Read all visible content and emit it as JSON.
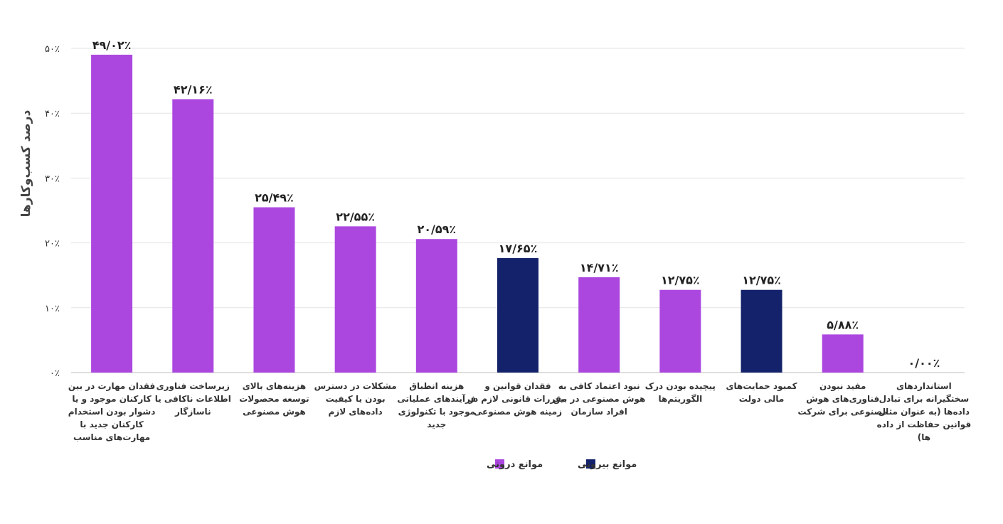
{
  "chart_data": {
    "type": "bar",
    "ylabel": "درصد کسب‌وکارها",
    "xlabel": "",
    "ylim": [
      0,
      50
    ],
    "y_ticks": [
      "۰٪",
      "۱۰٪",
      "۲۰٪",
      "۳۰٪",
      "۴۰٪",
      "۵۰٪"
    ],
    "grid": true,
    "categories": [
      "فقدان مهارت در بین کارکنان موجود و یا دشوار بودن استخدام کارکنان جدید با مهارت‌های مناسب",
      "زیرساخت فناوری اطلاعات ناکافی یا ناسازگار",
      "هزینه‌های بالای توسعه محصولات هوش مصنوعی",
      "مشکلات در دسترس بودن یا کیفیت داده‌های لازم",
      "هزینه انطباق فرآیندهای عملیاتی موجود با تکنولوژی جدید",
      "فقدان قوانین و مقررات قانونی لازم در زمینه هوش مصنوعی",
      "نبود اعتماد کافی به هوش مصنوعی در بین افراد سازمان",
      "پیچیده بودن درک الگوریتم‌ها",
      "کمبود حمایت‌های مالی دولت",
      "مفید نبودن فناوری‌های هوش مصنوعی برای شرکت",
      "استانداردهای سختگیرانه برای تبادل داده‌ها (به عنوان مثال قوانین حفاظت از داده ها)"
    ],
    "category_lines": [
      [
        "فقدان مهارت در بین",
        "کارکنان موجود و یا",
        "دشوار بودن استخدام",
        "کارکنان جدید با",
        "مهارت‌های مناسب"
      ],
      [
        "زیرساخت فناوری",
        "اطلاعات ناکافی یا",
        "ناسازگار"
      ],
      [
        "هزینه‌های بالای",
        "توسعه محصولات",
        "هوش مصنوعی"
      ],
      [
        "مشکلات در دسترس",
        "بودن یا کیفیت",
        "داده‌های لازم"
      ],
      [
        "هزینه انطباق",
        "فرآیندهای عملیاتی",
        "موجود با تکنولوژی",
        "جدید"
      ],
      [
        "فقدان قوانین و",
        "مقررات قانونی لازم در",
        "زمینه هوش مصنوعی"
      ],
      [
        "نبود اعتماد کافی به",
        "هوش مصنوعی در بین",
        "افراد سازمان"
      ],
      [
        "پیچیده بودن درک",
        "الگوریتم‌ها"
      ],
      [
        "کمبود حمایت‌های",
        "مالی دولت"
      ],
      [
        "مفید نبودن",
        "فناوری‌های هوش",
        "مصنوعی برای شرکت"
      ],
      [
        "استانداردهای",
        "سختگیرانه برای تبادل",
        "داده‌ها (به عنوان مثال",
        "قوانین حفاظت از داده",
        "ها)"
      ]
    ],
    "values": [
      49.02,
      42.16,
      25.49,
      22.55,
      20.59,
      17.65,
      14.71,
      12.75,
      12.75,
      5.88,
      0.0
    ],
    "value_labels": [
      "۴۹/۰۲٪",
      "۴۲/۱۶٪",
      "۲۵/۴۹٪",
      "۲۲/۵۵٪",
      "۲۰/۵۹٪",
      "۱۷/۶۵٪",
      "۱۴/۷۱٪",
      "۱۲/۷۵٪",
      "۱۲/۷۵٪",
      "۵/۸۸٪",
      "۰/۰۰٪"
    ],
    "groups": [
      "internal",
      "internal",
      "internal",
      "internal",
      "internal",
      "external",
      "internal",
      "internal",
      "external",
      "internal",
      "internal"
    ],
    "series": [
      {
        "key": "internal",
        "name": "موانع درونی",
        "color": "#ab47df"
      },
      {
        "key": "external",
        "name": "موانع بیرونی",
        "color": "#13226a"
      }
    ],
    "legend_position": "bottom-center"
  }
}
